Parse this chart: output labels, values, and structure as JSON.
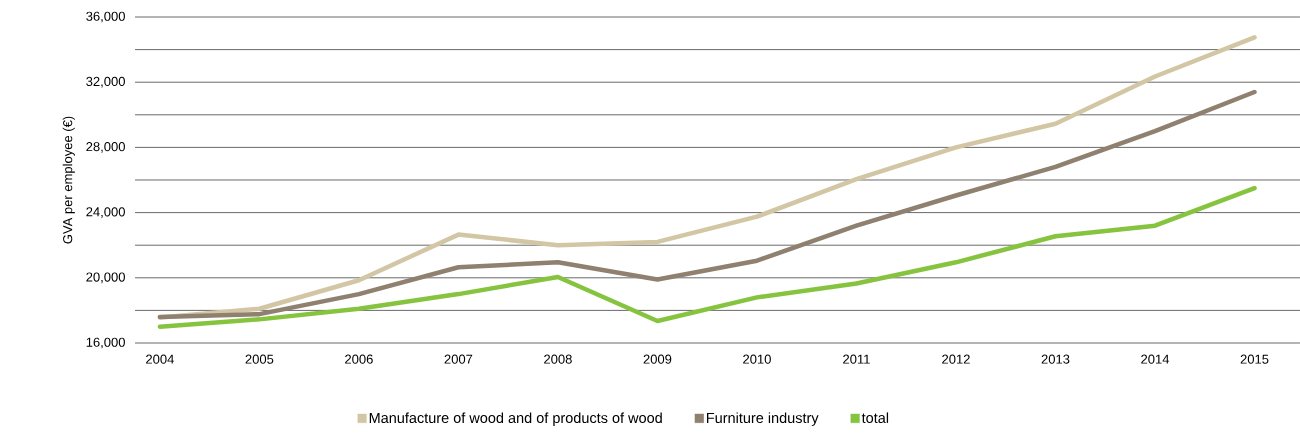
{
  "chart_data": {
    "type": "line",
    "ylabel": "GVA per employee (€)",
    "categories": [
      "2004",
      "2005",
      "2006",
      "2007",
      "2008",
      "2009",
      "2010",
      "2011",
      "2012",
      "2013",
      "2014",
      "2015"
    ],
    "series": [
      {
        "name": "Manufacture of wood and of products of wood",
        "color": "#d3c6a4",
        "values": [
          17570,
          18100,
          19850,
          22650,
          22000,
          22200,
          23750,
          26050,
          28000,
          29450,
          32350,
          34750
        ]
      },
      {
        "name": "Furniture industry",
        "color": "#8f8070",
        "values": [
          17600,
          17770,
          19000,
          20650,
          20950,
          19900,
          21050,
          23200,
          25050,
          26800,
          29000,
          31400
        ]
      },
      {
        "name": "total",
        "color": "#86c440",
        "values": [
          17000,
          17450,
          18100,
          19000,
          20050,
          17350,
          18800,
          19650,
          20950,
          22550,
          23200,
          25500
        ]
      }
    ],
    "ylim": [
      16000,
      36000
    ],
    "yticks": [
      {
        "value": 16000,
        "label": "16,000"
      },
      {
        "value": 18000,
        "label": null
      },
      {
        "value": 20000,
        "label": "20,000"
      },
      {
        "value": 22000,
        "label": null
      },
      {
        "value": 24000,
        "label": "24,000"
      },
      {
        "value": 26000,
        "label": null
      },
      {
        "value": 28000,
        "label": "28,000"
      },
      {
        "value": 30000,
        "label": null
      },
      {
        "value": 32000,
        "label": "32,000"
      },
      {
        "value": 34000,
        "label": null
      },
      {
        "value": 36000,
        "label": "36,000"
      }
    ],
    "grid": "y",
    "legend": "bottom",
    "marker": "none",
    "line_style": "solid"
  }
}
